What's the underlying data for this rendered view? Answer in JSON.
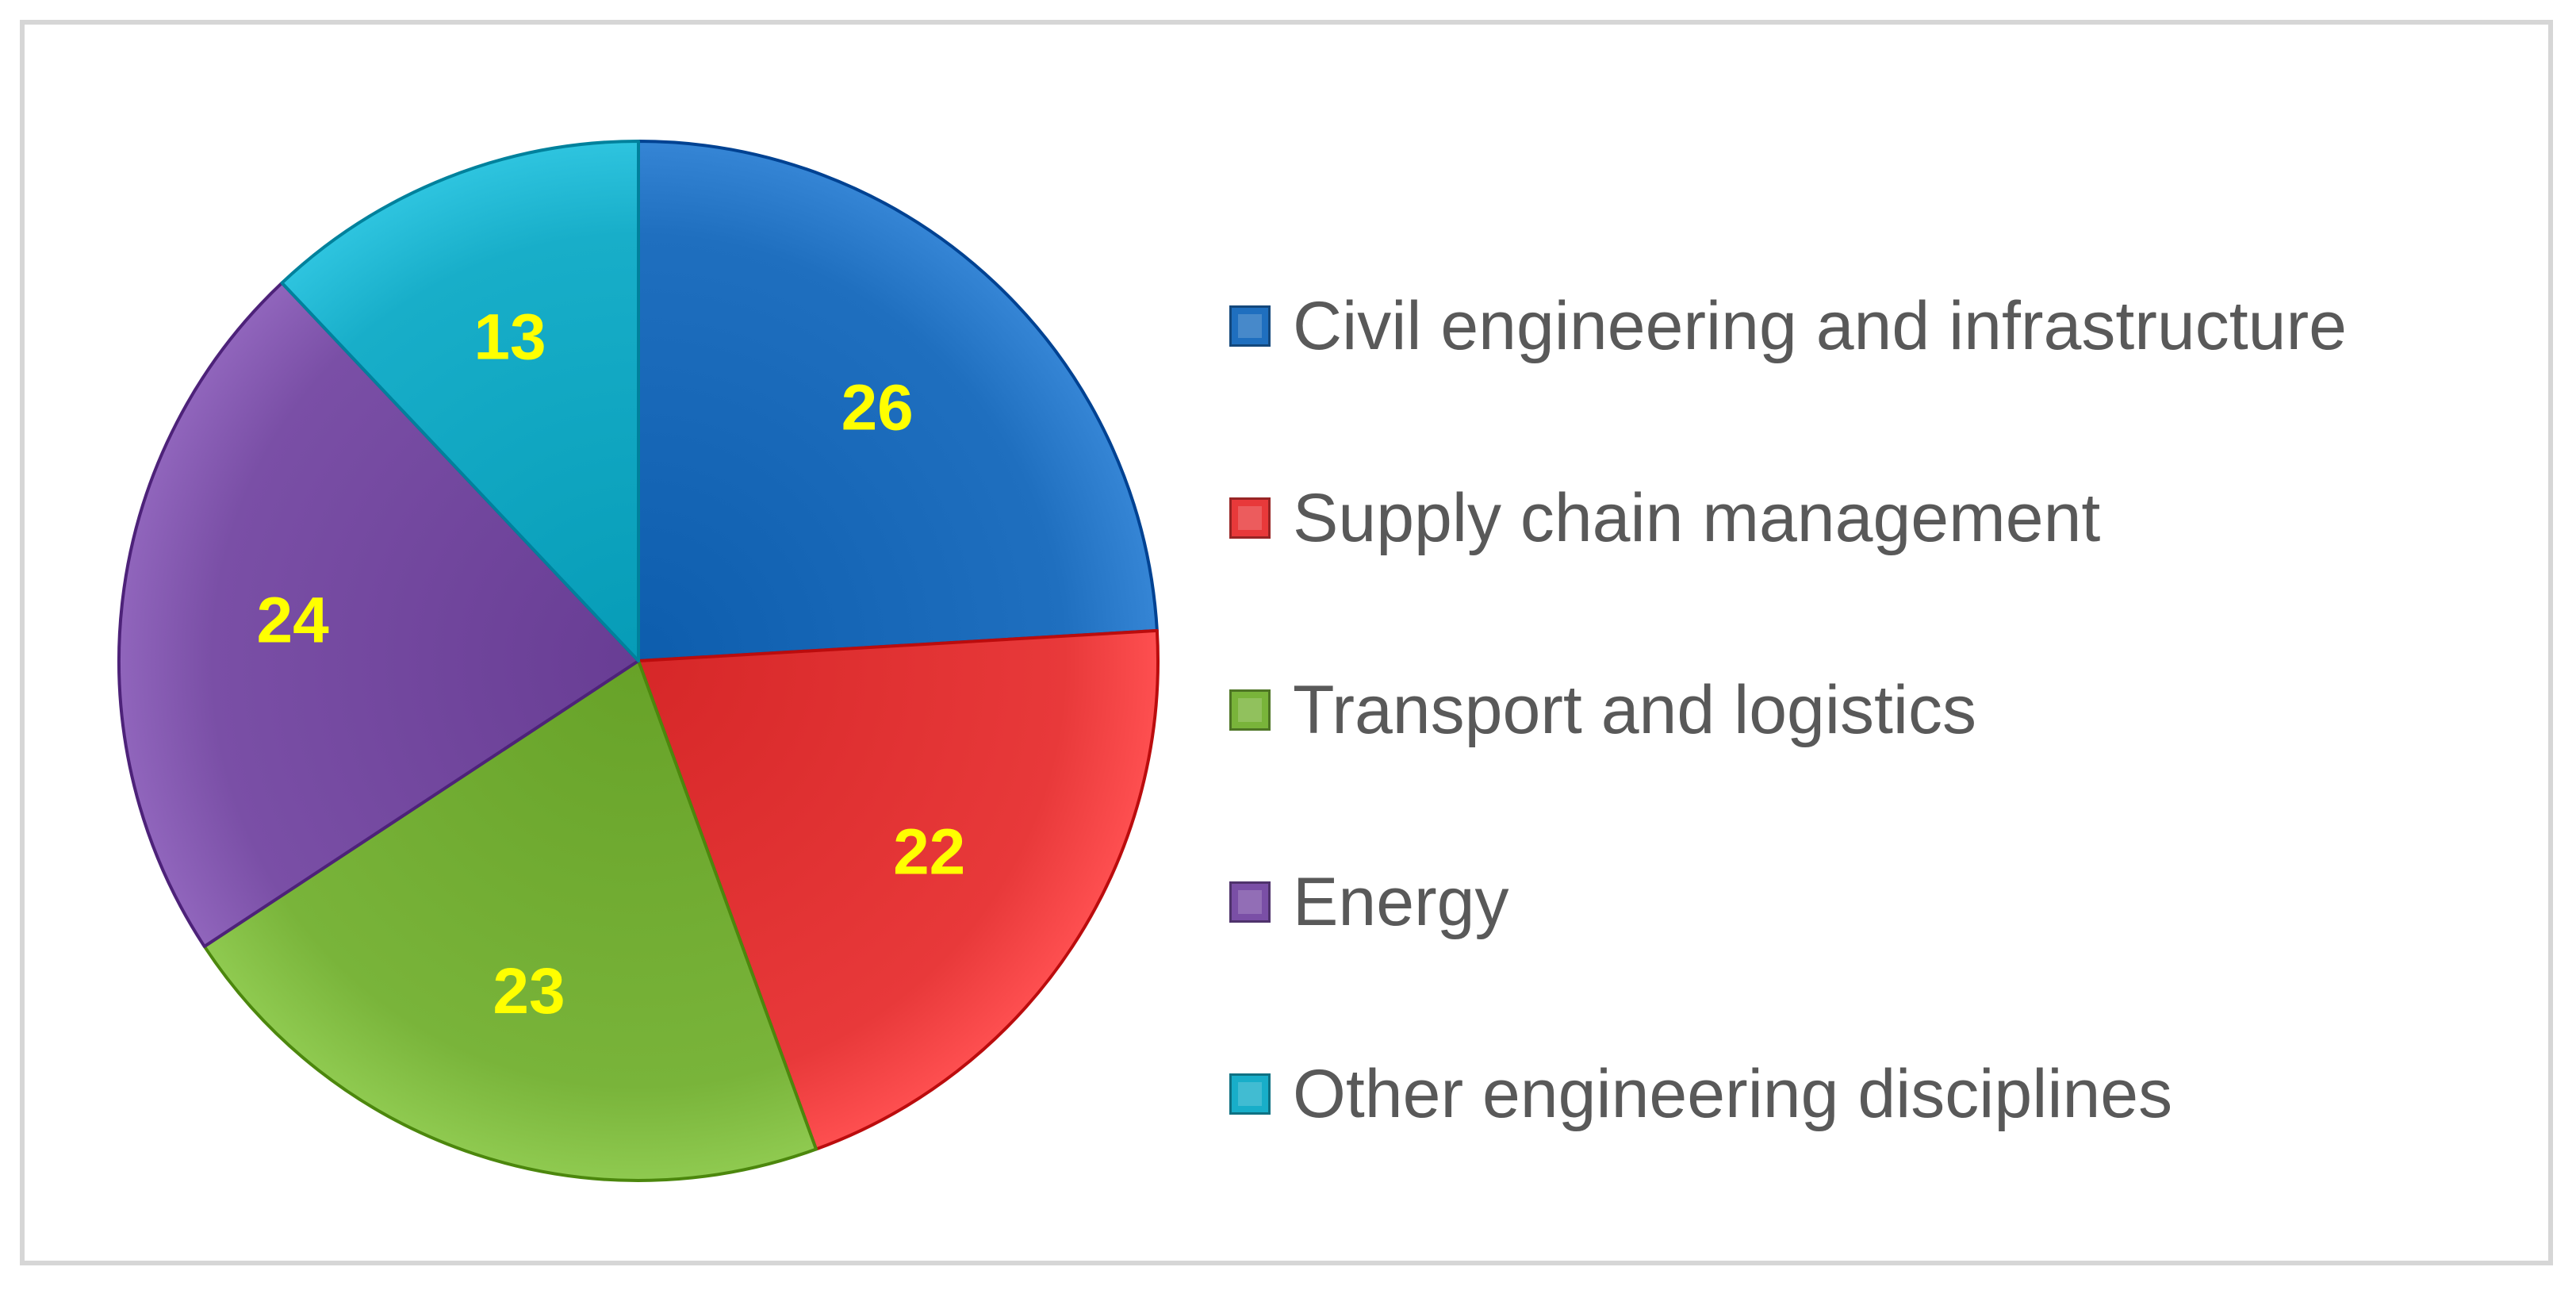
{
  "chart_data": {
    "type": "pie",
    "title": "",
    "categories": [
      "Civil engineering and infrastructure",
      "Supply chain management",
      "Transport and logistics",
      "Energy",
      "Other engineering disciplines"
    ],
    "values": [
      26,
      22,
      23,
      24,
      13
    ],
    "colors": [
      "#1f6fbf",
      "#e8393a",
      "#79b43a",
      "#7a4fa6",
      "#18aec9"
    ],
    "data_labels": [
      "26",
      "22",
      "23",
      "24",
      "13"
    ],
    "data_label_color": "#ffff00",
    "legend_position": "right",
    "start_angle": "12 o'clock, clockwise"
  }
}
